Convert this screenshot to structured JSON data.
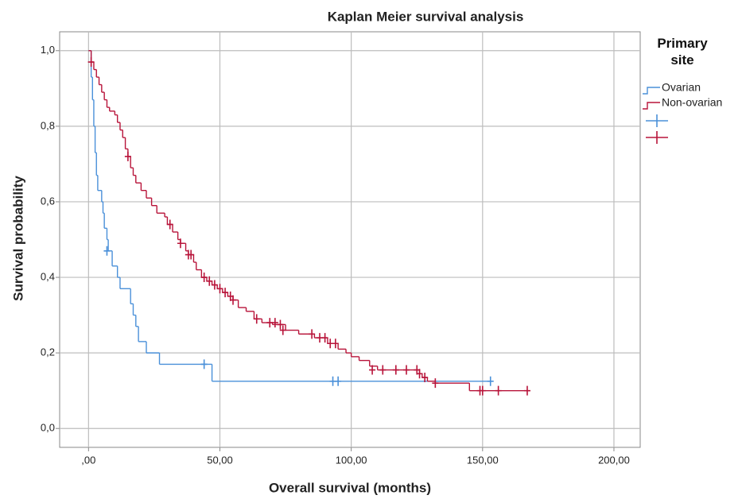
{
  "chart_data": {
    "type": "step",
    "title": "Kaplan Meier survival analysis",
    "x_label": "Overall survival (months)",
    "y_label": "Survival probability",
    "legend_title": "Primary site",
    "legend": "right",
    "grid": true,
    "xlim": [
      -11,
      210
    ],
    "ylim": [
      -0.05,
      1.05
    ],
    "xticks": [
      {
        "value": 0,
        "label": ",00"
      },
      {
        "value": 50,
        "label": "50,00"
      },
      {
        "value": 100,
        "label": "100,00"
      },
      {
        "value": 150,
        "label": "150,00"
      },
      {
        "value": 200,
        "label": "200,00"
      }
    ],
    "yticks": [
      {
        "value": 0,
        "label": "0,0"
      },
      {
        "value": 0.2,
        "label": "0,2"
      },
      {
        "value": 0.4,
        "label": "0,4"
      },
      {
        "value": 0.6,
        "label": "0,6"
      },
      {
        "value": 0.8,
        "label": "0,8"
      },
      {
        "value": 1.0,
        "label": "1,0"
      }
    ],
    "series": [
      {
        "name": "Ovarian",
        "color": "#4a90d9",
        "x": [
          0,
          1,
          1.5,
          2,
          2.5,
          3,
          3.5,
          5,
          5.5,
          6,
          7,
          7.5,
          9,
          11,
          12,
          16,
          17,
          18,
          19,
          22,
          27,
          47
        ],
        "values": [
          1.0,
          0.93,
          0.87,
          0.8,
          0.73,
          0.67,
          0.63,
          0.6,
          0.57,
          0.53,
          0.5,
          0.47,
          0.43,
          0.4,
          0.37,
          0.33,
          0.3,
          0.27,
          0.23,
          0.2,
          0.17,
          0.125
        ],
        "censored_x": [
          7,
          44,
          93,
          95,
          153
        ],
        "censored_values": [
          0.47,
          0.17,
          0.125,
          0.125,
          0.125
        ]
      },
      {
        "name": "Non-ovarian",
        "color": "#b8143a",
        "x": [
          0,
          1,
          2,
          3,
          4,
          5,
          6,
          7,
          8,
          10,
          11,
          12,
          13,
          14,
          15,
          16,
          17,
          18,
          20,
          22,
          24,
          26,
          29,
          30,
          32,
          34,
          35,
          37,
          38,
          40,
          41,
          43,
          45,
          47,
          49,
          51,
          53,
          55,
          57,
          60,
          63,
          66,
          70,
          75,
          80,
          86,
          91,
          95,
          98,
          100,
          103,
          107,
          110,
          126,
          127,
          129,
          132,
          145
        ],
        "values": [
          1.0,
          0.97,
          0.95,
          0.93,
          0.91,
          0.89,
          0.87,
          0.85,
          0.84,
          0.83,
          0.81,
          0.79,
          0.77,
          0.74,
          0.72,
          0.69,
          0.67,
          0.65,
          0.63,
          0.61,
          0.59,
          0.57,
          0.56,
          0.54,
          0.52,
          0.5,
          0.49,
          0.47,
          0.46,
          0.44,
          0.42,
          0.4,
          0.39,
          0.38,
          0.37,
          0.36,
          0.35,
          0.34,
          0.32,
          0.31,
          0.29,
          0.28,
          0.275,
          0.26,
          0.25,
          0.24,
          0.225,
          0.21,
          0.2,
          0.19,
          0.18,
          0.165,
          0.155,
          0.145,
          0.135,
          0.125,
          0.12,
          0.1
        ],
        "censored_x": [
          1,
          15,
          31,
          35,
          38,
          39,
          44,
          46,
          48,
          50,
          52,
          54,
          55,
          64,
          69,
          71,
          73,
          74,
          85,
          88,
          90,
          92,
          94,
          108,
          112,
          117,
          121,
          125,
          126,
          128,
          132,
          149,
          150,
          156,
          167
        ],
        "censored_values": [
          0.97,
          0.72,
          0.54,
          0.49,
          0.46,
          0.46,
          0.4,
          0.39,
          0.38,
          0.37,
          0.36,
          0.35,
          0.34,
          0.29,
          0.28,
          0.28,
          0.275,
          0.26,
          0.25,
          0.24,
          0.24,
          0.225,
          0.225,
          0.155,
          0.155,
          0.155,
          0.155,
          0.155,
          0.145,
          0.135,
          0.12,
          0.1,
          0.1,
          0.1,
          0.1
        ]
      }
    ]
  }
}
